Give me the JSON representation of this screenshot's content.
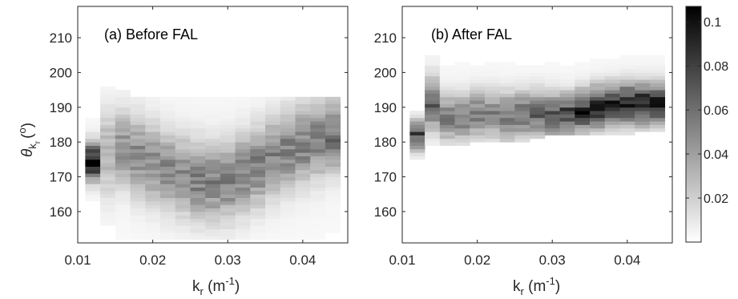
{
  "chart_data": [
    {
      "type": "heatmap",
      "panel_label": "(a) Before FAL",
      "xlabel_main": "k",
      "xlabel_sub": "r",
      "xlabel_unit": " (m",
      "xlabel_exp": "-1",
      "xlabel_close": ")",
      "ylabel_main": "θ",
      "ylabel_sub1": "k",
      "ylabel_sub2": "r",
      "ylabel_unit": "(",
      "ylabel_exp": "o",
      "ylabel_close": ")",
      "xlim": [
        0.01,
        0.046
      ],
      "ylim": [
        151,
        219
      ],
      "xticks": [
        0.01,
        0.02,
        0.03,
        0.04
      ],
      "xtick_labels": [
        "0.01",
        "0.02",
        "0.03",
        "0.04"
      ],
      "yticks": [
        160,
        170,
        180,
        190,
        200,
        210
      ],
      "ytick_labels": [
        "160",
        "170",
        "180",
        "190",
        "200",
        "210"
      ],
      "bins_x_center": [
        0.012,
        0.014,
        0.016,
        0.018,
        0.02,
        0.022,
        0.024,
        0.026,
        0.028,
        0.03,
        0.032,
        0.034,
        0.036,
        0.038,
        0.04,
        0.042,
        0.044
      ],
      "ridge_y": [
        174.5,
        177,
        178,
        176,
        174,
        172,
        170.5,
        169,
        168.5,
        169,
        171,
        173,
        175.5,
        177.5,
        179.5,
        181,
        182
      ],
      "ridge_width": [
        3.5,
        8,
        7,
        7.5,
        7.5,
        7.5,
        7.5,
        7.5,
        7.5,
        7.5,
        7.5,
        7.5,
        7.5,
        7.5,
        7.5,
        7.5,
        7
      ],
      "peak_value": [
        0.105,
        0.03,
        0.045,
        0.045,
        0.045,
        0.045,
        0.045,
        0.05,
        0.05,
        0.05,
        0.05,
        0.05,
        0.05,
        0.05,
        0.05,
        0.05,
        0.055
      ],
      "y_extent": [
        [
          163,
          187
        ],
        [
          156,
          196
        ],
        [
          152,
          195
        ],
        [
          152,
          193
        ],
        [
          152,
          193
        ],
        [
          152,
          193
        ],
        [
          152,
          193
        ],
        [
          152,
          193
        ],
        [
          152,
          193
        ],
        [
          152,
          193
        ],
        [
          152,
          193
        ],
        [
          152,
          193
        ],
        [
          152,
          193
        ],
        [
          152,
          193
        ],
        [
          152,
          193
        ],
        [
          152,
          193
        ],
        [
          154,
          193
        ]
      ]
    },
    {
      "type": "heatmap",
      "panel_label": "(b) After FAL",
      "xlabel_main": "k",
      "xlabel_sub": "r",
      "xlabel_unit": " (m",
      "xlabel_exp": "-1",
      "xlabel_close": ")",
      "xlim": [
        0.01,
        0.046
      ],
      "ylim": [
        151,
        219
      ],
      "xticks": [
        0.01,
        0.02,
        0.03,
        0.04
      ],
      "xtick_labels": [
        "0.01",
        "0.02",
        "0.03",
        "0.04"
      ],
      "yticks": [
        160,
        170,
        180,
        190,
        200,
        210
      ],
      "ytick_labels": [
        "160",
        "170",
        "180",
        "190",
        "200",
        "210"
      ],
      "bins_x_center": [
        0.012,
        0.014,
        0.016,
        0.018,
        0.02,
        0.022,
        0.024,
        0.026,
        0.028,
        0.03,
        0.032,
        0.034,
        0.036,
        0.038,
        0.04,
        0.042,
        0.044
      ],
      "ridge_y": [
        182,
        191,
        187,
        187,
        188,
        188,
        187.5,
        188,
        188,
        187.5,
        188,
        189,
        190,
        190.5,
        191,
        191,
        191
      ],
      "ridge_width": [
        3,
        5,
        4.5,
        4.5,
        4.5,
        4.5,
        4.5,
        4.5,
        4.5,
        4.5,
        4,
        4,
        4,
        4,
        4,
        4,
        4
      ],
      "peak_value": [
        0.07,
        0.06,
        0.05,
        0.05,
        0.05,
        0.05,
        0.055,
        0.055,
        0.06,
        0.065,
        0.075,
        0.085,
        0.09,
        0.085,
        0.085,
        0.09,
        0.09
      ],
      "y_extent": [
        [
          175,
          189
        ],
        [
          179,
          205
        ],
        [
          179,
          202
        ],
        [
          179,
          203
        ],
        [
          180,
          202
        ],
        [
          180,
          203
        ],
        [
          180,
          203
        ],
        [
          180,
          202
        ],
        [
          181,
          202
        ],
        [
          182,
          203
        ],
        [
          182,
          202
        ],
        [
          182,
          203
        ],
        [
          182,
          204
        ],
        [
          182,
          204
        ],
        [
          182,
          205
        ],
        [
          183,
          205
        ],
        [
          183,
          205
        ]
      ]
    }
  ],
  "colorbar": {
    "range": [
      0,
      0.107
    ],
    "ticks": [
      0.02,
      0.04,
      0.06,
      0.08,
      0.1
    ],
    "tick_labels": [
      "0.02",
      "0.04",
      "0.06",
      "0.08",
      "0.1"
    ],
    "colormap": "inverted-gray"
  }
}
